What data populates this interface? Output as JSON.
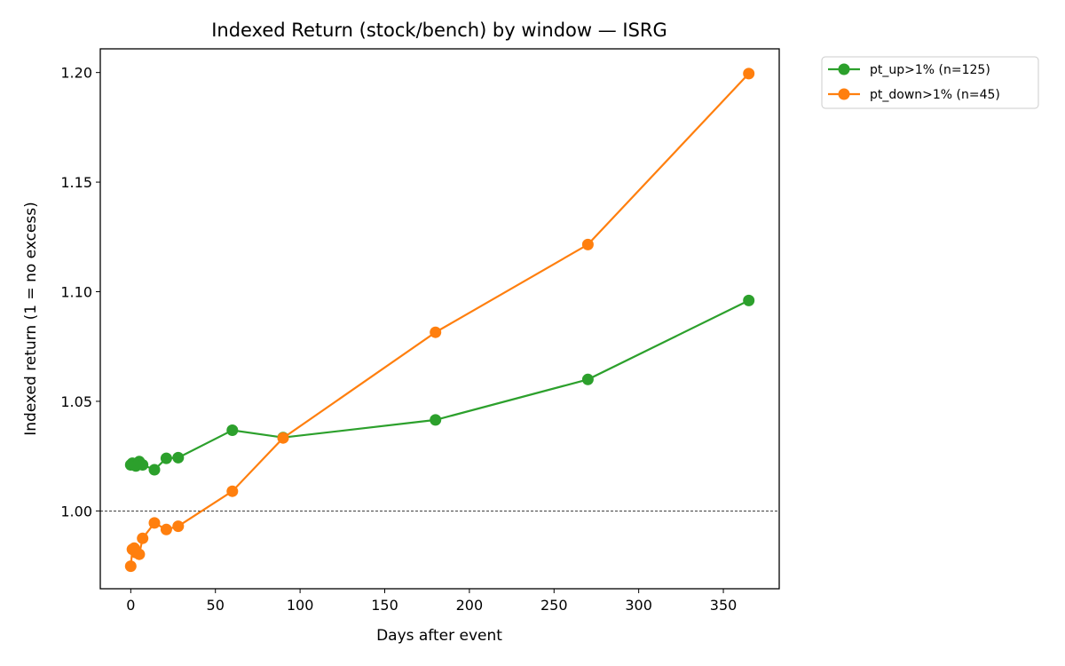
{
  "chart_data": {
    "type": "line",
    "title": "Indexed Return (stock/bench) by window — ISRG",
    "xlabel": "Days after event",
    "ylabel": "Indexed return (1 = no excess)",
    "xlim": [
      -18,
      383
    ],
    "ylim": [
      0.9645,
      1.2108
    ],
    "xticks": [
      0,
      50,
      100,
      150,
      200,
      250,
      300,
      350
    ],
    "yticks": [
      1.0,
      1.05,
      1.1,
      1.15,
      1.2
    ],
    "ytick_labels": [
      "1.00",
      "1.05",
      "1.10",
      "1.15",
      "1.20"
    ],
    "xtick_labels": [
      "0",
      "50",
      "100",
      "150",
      "200",
      "250",
      "300",
      "350"
    ],
    "reference_line": {
      "y": 1.0,
      "style": "dashed",
      "color": "#000000"
    },
    "legend": {
      "placement": "outside-top-right"
    },
    "grid": false,
    "series": [
      {
        "name": "pt_up>1% (n=125)",
        "color": "#2ca02c",
        "x": [
          0,
          1,
          2,
          3,
          5,
          7,
          14,
          21,
          28,
          60,
          90,
          180,
          270,
          365
        ],
        "y": [
          1.021,
          1.0218,
          1.0213,
          1.0205,
          1.0225,
          1.021,
          1.0188,
          1.024,
          1.0243,
          1.0368,
          1.0335,
          1.0415,
          1.06,
          1.096
        ]
      },
      {
        "name": "pt_down>1% (n=45)",
        "color": "#ff7f0e",
        "x": [
          0,
          1,
          2,
          3,
          5,
          7,
          14,
          21,
          28,
          60,
          90,
          180,
          270,
          365
        ],
        "y": [
          0.9748,
          0.9825,
          0.983,
          0.981,
          0.9802,
          0.9875,
          0.9945,
          0.9915,
          0.993,
          1.009,
          1.0333,
          1.0815,
          1.1215,
          1.1995
        ]
      }
    ]
  }
}
